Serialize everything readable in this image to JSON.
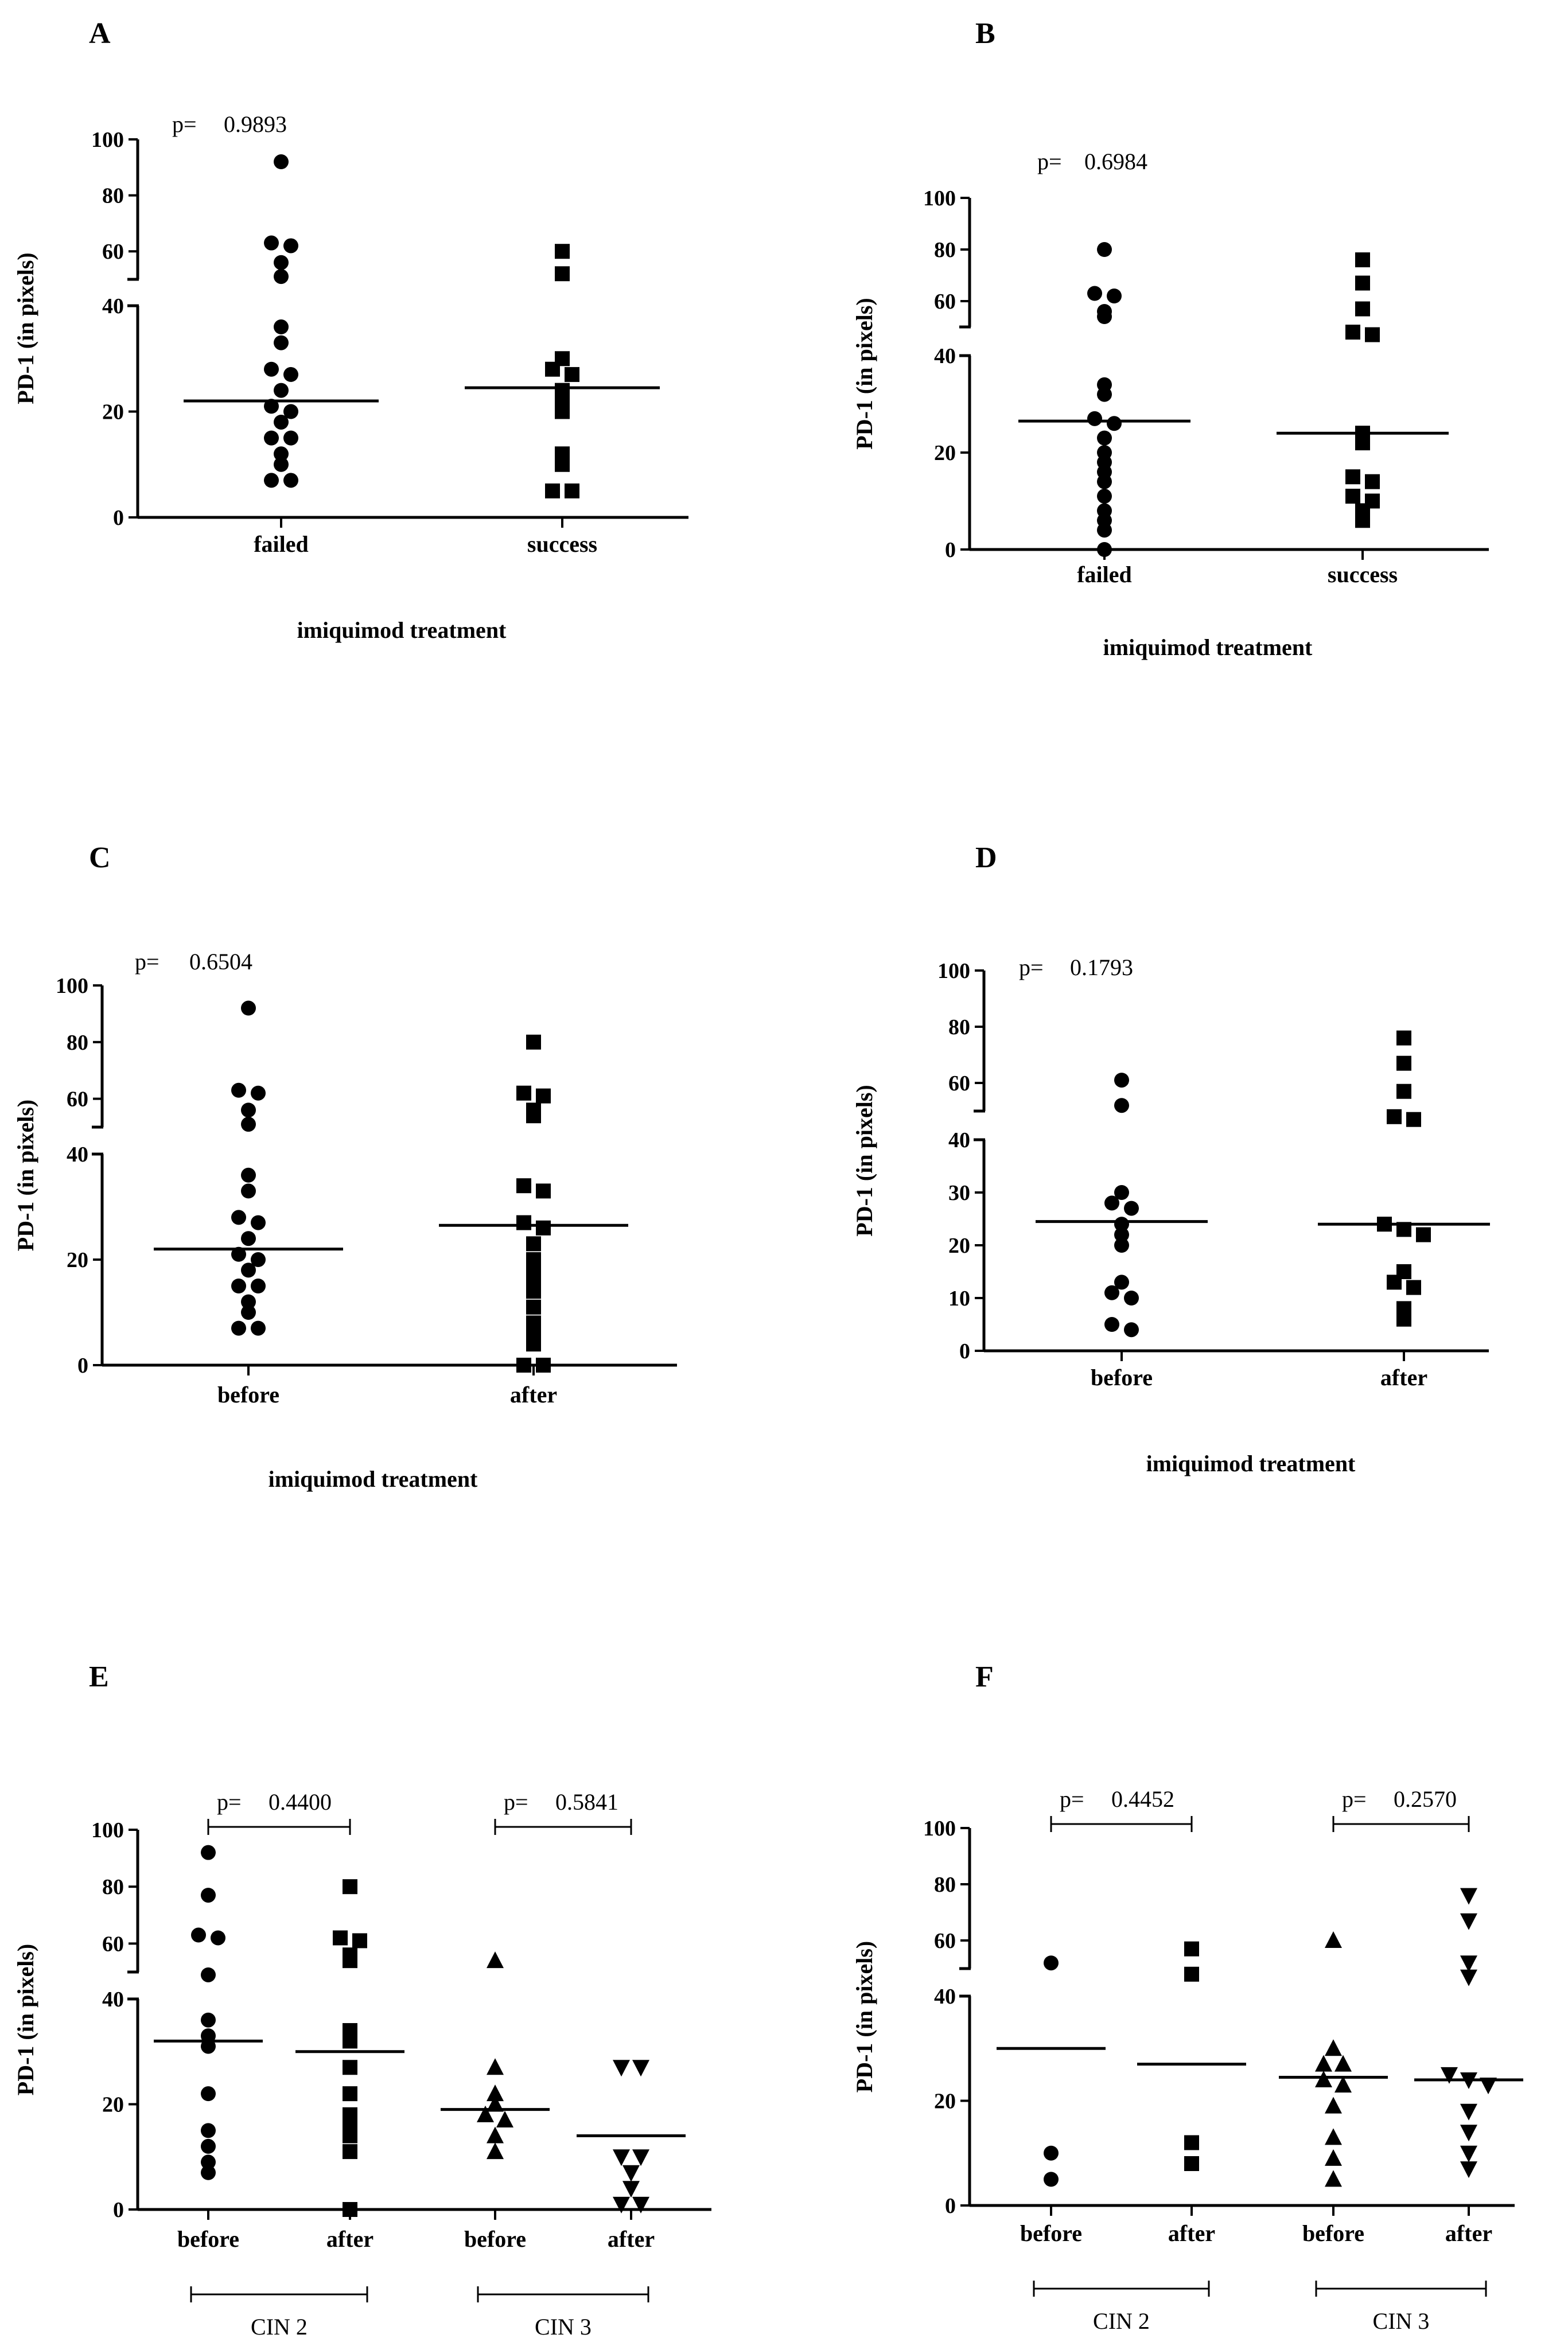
{
  "figure": {
    "panels": [
      "A",
      "B",
      "C",
      "D",
      "E",
      "F"
    ]
  },
  "chart_data": [
    {
      "panel": "A",
      "type": "scatter",
      "subtype": "dot-plot with median line, broken y-axis",
      "ylabel": "PD-1 (in pixels)",
      "xlabel": "imiquimod treatment",
      "p_label": "p=",
      "p_value": "0.9893",
      "y_ticks": [
        "0",
        "20",
        "40",
        "60",
        "80",
        "100"
      ],
      "y_break": [
        40,
        50
      ],
      "ylim": [
        0,
        100
      ],
      "categories": [
        "failed",
        "success"
      ],
      "series": [
        {
          "name": "failed",
          "marker": "circle",
          "median": 22,
          "values": [
            92,
            63,
            62,
            56,
            51,
            36,
            33,
            28,
            27,
            24,
            21,
            20,
            18,
            15,
            15,
            12,
            10,
            7,
            7
          ]
        },
        {
          "name": "success",
          "marker": "square",
          "median": 24.5,
          "values": [
            60,
            52,
            30,
            28,
            27,
            24,
            22,
            20,
            12,
            10,
            5,
            5
          ]
        }
      ]
    },
    {
      "panel": "B",
      "type": "scatter",
      "subtype": "dot-plot with median line, broken y-axis",
      "ylabel": "PD-1 (in pixels)",
      "xlabel": "imiquimod treatment",
      "p_label": "p=",
      "p_value": "0.6984",
      "y_ticks": [
        "0",
        "20",
        "40",
        "60",
        "80",
        "100"
      ],
      "y_break": [
        40,
        50
      ],
      "ylim": [
        0,
        100
      ],
      "categories": [
        "failed",
        "success"
      ],
      "series": [
        {
          "name": "failed",
          "marker": "circle",
          "median": 26.5,
          "values": [
            80,
            63,
            62,
            56,
            54,
            34,
            32,
            27,
            26,
            23,
            20,
            18,
            16,
            14,
            11,
            8,
            6,
            4,
            0
          ]
        },
        {
          "name": "success",
          "marker": "square",
          "median": 24,
          "values": [
            76,
            67,
            57,
            48,
            47,
            24,
            22,
            15,
            14,
            11,
            10,
            8,
            6
          ]
        }
      ]
    },
    {
      "panel": "C",
      "type": "scatter",
      "subtype": "dot-plot with median line, broken y-axis",
      "ylabel": "PD-1 (in pixels)",
      "xlabel": "imiquimod treatment",
      "p_label": "p=",
      "p_value": "0.6504",
      "y_ticks": [
        "0",
        "20",
        "40",
        "60",
        "80",
        "100"
      ],
      "y_break": [
        40,
        50
      ],
      "ylim": [
        0,
        100
      ],
      "categories": [
        "before",
        "after"
      ],
      "series": [
        {
          "name": "before",
          "marker": "circle",
          "median": 22,
          "values": [
            92,
            63,
            62,
            56,
            51,
            36,
            33,
            28,
            27,
            24,
            21,
            20,
            18,
            15,
            15,
            12,
            10,
            7,
            7
          ]
        },
        {
          "name": "after",
          "marker": "square",
          "median": 26.5,
          "values": [
            80,
            62,
            61,
            56,
            54,
            34,
            33,
            27,
            26,
            23,
            20,
            18,
            16,
            14,
            11,
            8,
            6,
            4,
            0,
            0
          ]
        }
      ]
    },
    {
      "panel": "D",
      "type": "scatter",
      "subtype": "dot-plot with median line, broken y-axis",
      "ylabel": "PD-1 (in pixels)",
      "xlabel": "imiquimod treatment",
      "p_label": "p=",
      "p_value": "0.1793",
      "y_ticks": [
        "0",
        "10",
        "20",
        "30",
        "40",
        "60",
        "80",
        "100"
      ],
      "y_break": [
        40,
        50
      ],
      "ylim": [
        0,
        100
      ],
      "categories": [
        "before",
        "after"
      ],
      "series": [
        {
          "name": "before",
          "marker": "circle",
          "median": 24.5,
          "values": [
            61,
            52,
            30,
            28,
            27,
            24,
            22,
            20,
            13,
            11,
            10,
            5,
            4
          ]
        },
        {
          "name": "after",
          "marker": "square",
          "median": 24,
          "values": [
            76,
            67,
            57,
            48,
            47,
            24,
            23,
            22,
            15,
            13,
            12,
            8,
            6
          ]
        }
      ]
    },
    {
      "panel": "E",
      "type": "scatter",
      "subtype": "dot-plot with median line, broken y-axis",
      "ylabel": "PD-1 (in pixels)",
      "y_ticks": [
        "0",
        "20",
        "40",
        "60",
        "80",
        "100"
      ],
      "y_break": [
        40,
        50
      ],
      "ylim": [
        0,
        100
      ],
      "categories": [
        "before",
        "after",
        "before",
        "after"
      ],
      "groups": [
        {
          "label": "CIN 2",
          "p_label": "p=",
          "p_value": "0.4400"
        },
        {
          "label": "CIN 3",
          "p_label": "p=",
          "p_value": "0.5841"
        }
      ],
      "series": [
        {
          "name": "CIN 2 before",
          "marker": "circle",
          "median": 32,
          "values": [
            92,
            77,
            63,
            62,
            49,
            36,
            33,
            31,
            22,
            15,
            12,
            9,
            7
          ]
        },
        {
          "name": "CIN 2 after",
          "marker": "square",
          "median": 30,
          "values": [
            80,
            62,
            61,
            56,
            54,
            34,
            32,
            27,
            22,
            18,
            16,
            14,
            11,
            0
          ]
        },
        {
          "name": "CIN 3 before",
          "marker": "triangle-up",
          "median": 19,
          "values": [
            54,
            27,
            22,
            20,
            18,
            17,
            14,
            11
          ]
        },
        {
          "name": "CIN 3 after",
          "marker": "triangle-down",
          "median": 14,
          "values": [
            27,
            27,
            10,
            10,
            7,
            4,
            1,
            1
          ]
        }
      ]
    },
    {
      "panel": "F",
      "type": "scatter",
      "subtype": "dot-plot with median line, broken y-axis",
      "ylabel": "PD-1 (in pixels)",
      "y_ticks": [
        "0",
        "20",
        "40",
        "60",
        "80",
        "100"
      ],
      "y_break": [
        40,
        50
      ],
      "ylim": [
        0,
        100
      ],
      "categories": [
        "before",
        "after",
        "before",
        "after"
      ],
      "groups": [
        {
          "label": "CIN 2",
          "p_label": "p=",
          "p_value": "0.4452"
        },
        {
          "label": "CIN 3",
          "p_label": "p=",
          "p_value": "0.2570"
        }
      ],
      "series": [
        {
          "name": "CIN 2 before",
          "marker": "circle",
          "median": 30,
          "values": [
            52,
            10,
            5
          ]
        },
        {
          "name": "CIN 2 after",
          "marker": "square",
          "median": 27,
          "values": [
            57,
            48,
            12,
            8
          ]
        },
        {
          "name": "CIN 3 before",
          "marker": "triangle-up",
          "median": 24.5,
          "values": [
            60,
            30,
            27,
            27,
            24,
            23,
            19,
            13,
            9,
            5
          ]
        },
        {
          "name": "CIN 3 after",
          "marker": "triangle-down",
          "median": 24,
          "values": [
            76,
            67,
            52,
            47,
            25,
            24,
            23,
            18,
            14,
            10,
            7
          ]
        }
      ]
    }
  ]
}
